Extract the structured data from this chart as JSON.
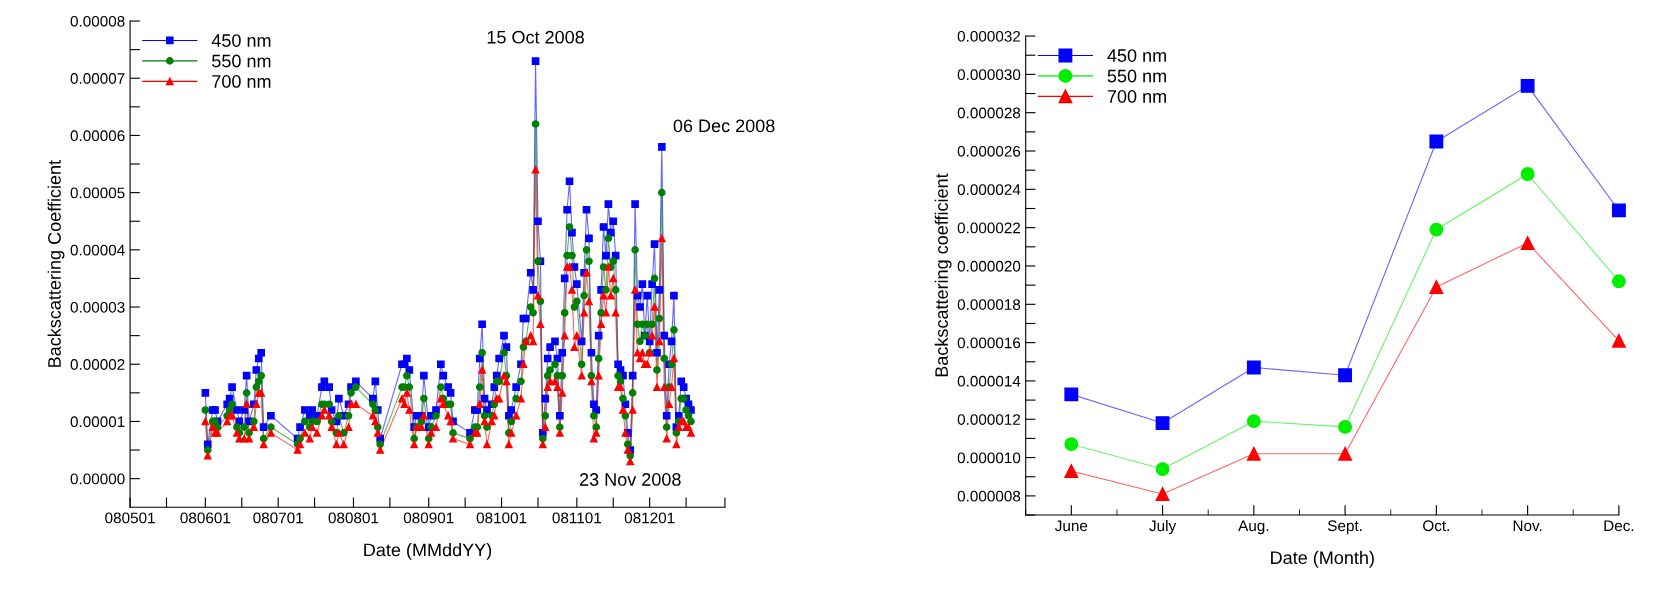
{
  "chart_data": [
    {
      "type": "line",
      "xlabel": "Date (MMddYY)",
      "ylabel": "Backscattering Coefficient",
      "legend": "top left",
      "xlim": [
        "2008-05-01",
        "2009-01-01"
      ],
      "xticks": [
        {
          "value": "2008-05-01",
          "label": "080501"
        },
        {
          "value": "2008-05-16",
          "label": null
        },
        {
          "value": "2008-06-01",
          "label": "080601"
        },
        {
          "value": "2008-06-16",
          "label": null
        },
        {
          "value": "2008-07-01",
          "label": "080701"
        },
        {
          "value": "2008-07-16",
          "label": null
        },
        {
          "value": "2008-08-01",
          "label": "080801"
        },
        {
          "value": "2008-08-16",
          "label": null
        },
        {
          "value": "2008-09-01",
          "label": "080901"
        },
        {
          "value": "2008-09-16",
          "label": null
        },
        {
          "value": "2008-10-01",
          "label": "081001"
        },
        {
          "value": "2008-10-16",
          "label": null
        },
        {
          "value": "2008-11-01",
          "label": "081101"
        },
        {
          "value": "2008-11-16",
          "label": null
        },
        {
          "value": "2008-12-01",
          "label": "081201"
        },
        {
          "value": "2008-12-16",
          "label": null
        },
        {
          "value": "2009-01-01",
          "label": null
        }
      ],
      "ylim": [
        -5e-06,
        8e-05
      ],
      "yticks": [
        {
          "value": 0,
          "label": "0.00000"
        },
        {
          "value": 5e-06,
          "label": null
        },
        {
          "value": 1e-05,
          "label": "0.00001"
        },
        {
          "value": 1.5e-05,
          "label": null
        },
        {
          "value": 2e-05,
          "label": "0.00002"
        },
        {
          "value": 2.5e-05,
          "label": null
        },
        {
          "value": 3e-05,
          "label": "0.00003"
        },
        {
          "value": 3.5e-05,
          "label": null
        },
        {
          "value": 4e-05,
          "label": "0.00004"
        },
        {
          "value": 4.5e-05,
          "label": null
        },
        {
          "value": 5e-05,
          "label": "0.00005"
        },
        {
          "value": 5.5e-05,
          "label": null
        },
        {
          "value": 6e-05,
          "label": "0.00006"
        },
        {
          "value": 6.5e-05,
          "label": null
        },
        {
          "value": 7e-05,
          "label": "0.00007"
        },
        {
          "value": 7.5e-05,
          "label": null
        },
        {
          "value": 8e-05,
          "label": "0.00008"
        }
      ],
      "grid": false,
      "line_style": "solid",
      "annotations": [
        {
          "text": "15 Oct 2008",
          "x": "2008-10-15",
          "y": 7.3e-05
        },
        {
          "text": "06 Dec 2008",
          "x": "2008-12-06",
          "y": 5.8e-05
        },
        {
          "text": "23 Nov 2008",
          "x": "2008-11-23",
          "y": 3e-06
        }
      ],
      "x": [
        "2008-06-01",
        "2008-06-02",
        "2008-06-04",
        "2008-06-05",
        "2008-06-06",
        "2008-06-10",
        "2008-06-11",
        "2008-06-12",
        "2008-06-14",
        "2008-06-15",
        "2008-06-17",
        "2008-06-18",
        "2008-06-19",
        "2008-06-21",
        "2008-06-22",
        "2008-06-23",
        "2008-06-24",
        "2008-06-25",
        "2008-06-28",
        "2008-07-09",
        "2008-07-10",
        "2008-07-12",
        "2008-07-14",
        "2008-07-15",
        "2008-07-17",
        "2008-07-19",
        "2008-07-20",
        "2008-07-22",
        "2008-07-23",
        "2008-07-25",
        "2008-07-26",
        "2008-07-28",
        "2008-07-30",
        "2008-07-31",
        "2008-08-02",
        "2008-08-09",
        "2008-08-10",
        "2008-08-11",
        "2008-08-12",
        "2008-08-21",
        "2008-08-22",
        "2008-08-23",
        "2008-08-24",
        "2008-08-26",
        "2008-08-27",
        "2008-08-29",
        "2008-08-30",
        "2008-09-01",
        "2008-09-02",
        "2008-09-04",
        "2008-09-06",
        "2008-09-07",
        "2008-09-09",
        "2008-09-10",
        "2008-09-11",
        "2008-09-18",
        "2008-09-20",
        "2008-09-21",
        "2008-09-22",
        "2008-09-23",
        "2008-09-24",
        "2008-09-25",
        "2008-09-27",
        "2008-09-28",
        "2008-09-29",
        "2008-09-30",
        "2008-10-02",
        "2008-10-03",
        "2008-10-04",
        "2008-10-05",
        "2008-10-07",
        "2008-10-09",
        "2008-10-10",
        "2008-10-11",
        "2008-10-13",
        "2008-10-14",
        "2008-10-15",
        "2008-10-16",
        "2008-10-17",
        "2008-10-18",
        "2008-10-19",
        "2008-10-20",
        "2008-10-21",
        "2008-10-23",
        "2008-10-24",
        "2008-10-25",
        "2008-10-26",
        "2008-10-27",
        "2008-10-28",
        "2008-10-29",
        "2008-10-30",
        "2008-10-31",
        "2008-11-01",
        "2008-11-03",
        "2008-11-04",
        "2008-11-05",
        "2008-11-06",
        "2008-11-07",
        "2008-11-08",
        "2008-11-09",
        "2008-11-10",
        "2008-11-11",
        "2008-11-12",
        "2008-11-13",
        "2008-11-14",
        "2008-11-15",
        "2008-11-16",
        "2008-11-17",
        "2008-11-18",
        "2008-11-19",
        "2008-11-20",
        "2008-11-21",
        "2008-11-22",
        "2008-11-23",
        "2008-11-24",
        "2008-11-25",
        "2008-11-26",
        "2008-11-27",
        "2008-11-28",
        "2008-11-29",
        "2008-11-30",
        "2008-12-01",
        "2008-12-02",
        "2008-12-03",
        "2008-12-04",
        "2008-12-05",
        "2008-12-06",
        "2008-12-07",
        "2008-12-08",
        "2008-12-09",
        "2008-12-10",
        "2008-12-11",
        "2008-12-12",
        "2008-12-13",
        "2008-12-14",
        "2008-12-15",
        "2008-12-16",
        "2008-12-17",
        "2008-12-18"
      ],
      "series": [
        {
          "name": "450 nm",
          "color": "#0000ff",
          "marker": "square",
          "values": [
            1.5e-05,
            6e-06,
            1.2e-05,
            1.2e-05,
            1e-05,
            1.3e-05,
            1.4e-05,
            1.6e-05,
            1.2e-05,
            1e-05,
            1.2e-05,
            1.8e-05,
            1e-05,
            1.3e-05,
            1.9e-05,
            2.1e-05,
            2.2e-05,
            9e-06,
            1.1e-05,
            7e-06,
            9e-06,
            1.2e-05,
            1.1e-05,
            1.2e-05,
            1.1e-05,
            1.6e-05,
            1.7e-05,
            1.6e-05,
            1.2e-05,
            1e-05,
            1.4e-05,
            1.1e-05,
            1.3e-05,
            1.6e-05,
            1.7e-05,
            1.4e-05,
            1.7e-05,
            1.2e-05,
            7e-06,
            2e-05,
            2e-05,
            2.1e-05,
            1.9e-05,
            9e-06,
            1.1e-05,
            1.1e-05,
            1.8e-05,
            9e-06,
            1.1e-05,
            1.2e-05,
            2e-05,
            1.8e-05,
            1.6e-05,
            1.5e-05,
            1e-05,
            8e-06,
            1.2e-05,
            1.2e-05,
            2.1e-05,
            2.7e-05,
            1.4e-05,
            1.2e-05,
            1.3e-05,
            1.6e-05,
            1.8e-05,
            2.1e-05,
            2.5e-05,
            2.3e-05,
            1.1e-05,
            1.2e-05,
            1.6e-05,
            2e-05,
            2.8e-05,
            2.8e-05,
            3.6e-05,
            3.3e-05,
            7.3e-05,
            4.5e-05,
            3.8e-05,
            8e-06,
            1.4e-05,
            2.1e-05,
            2.3e-05,
            2.4e-05,
            2.1e-05,
            1.1e-05,
            2.2e-05,
            3.5e-05,
            4.7e-05,
            5.2e-05,
            4.3e-05,
            3.7e-05,
            3.4e-05,
            2.4e-05,
            3.6e-05,
            4.7e-05,
            4.2e-05,
            2.2e-05,
            1.3e-05,
            1.2e-05,
            2.5e-05,
            3.3e-05,
            4.4e-05,
            3.9e-05,
            4.8e-05,
            4.3e-05,
            4.5e-05,
            3.9e-05,
            2e-05,
            1.9e-05,
            1.8e-05,
            1.3e-05,
            8e-06,
            5e-06,
            1.8e-05,
            4.8e-05,
            3.2e-05,
            3e-05,
            3.4e-05,
            2.5e-05,
            3.2e-05,
            2.4e-05,
            3.4e-05,
            4.1e-05,
            2.2e-05,
            3.3e-05,
            5.8e-05,
            2.5e-05,
            1.1e-05,
            2e-05,
            2.4e-05,
            3.2e-05,
            9e-06,
            1.1e-05,
            1.7e-05,
            1.6e-05,
            1.4e-05,
            1.3e-05,
            1.2e-05
          ]
        },
        {
          "name": "550 nm",
          "color": "#008000",
          "marker": "circle",
          "values": [
            1.2e-05,
            5e-06,
            1e-05,
            1e-05,
            9e-06,
            1.1e-05,
            1.2e-05,
            1.3e-05,
            9e-06,
            8e-06,
            9e-06,
            1.5e-05,
            8e-06,
            1e-05,
            1.6e-05,
            1.7e-05,
            1.8e-05,
            7e-06,
            9e-06,
            6e-06,
            7e-06,
            1e-05,
            9e-06,
            1e-05,
            1e-05,
            1.3e-05,
            1.3e-05,
            1.3e-05,
            1e-05,
            8e-06,
            1.1e-05,
            8e-06,
            1.1e-05,
            1.5e-05,
            1.6e-05,
            1.3e-05,
            1.2e-05,
            9e-06,
            6e-06,
            1.6e-05,
            1.6e-05,
            1.8e-05,
            1.6e-05,
            7e-06,
            9e-06,
            1e-05,
            1.4e-05,
            7e-06,
            9e-06,
            1.1e-05,
            1.6e-05,
            1.4e-05,
            1.3e-05,
            1.3e-05,
            8e-06,
            7e-06,
            9e-06,
            9e-06,
            1.6e-05,
            2.2e-05,
            1.1e-05,
            9e-06,
            1.1e-05,
            1.3e-05,
            1.7e-05,
            1.7e-05,
            2.2e-05,
            1.8e-05,
            8e-06,
            1e-05,
            1.4e-05,
            1.7e-05,
            2.3e-05,
            2.4e-05,
            3e-05,
            2.9e-05,
            6.2e-05,
            3.8e-05,
            3.1e-05,
            7e-06,
            1.1e-05,
            1.8e-05,
            1.9e-05,
            2e-05,
            1.8e-05,
            9e-06,
            1.8e-05,
            2.9e-05,
            3.9e-05,
            4.4e-05,
            3.9e-05,
            3e-05,
            3.1e-05,
            2e-05,
            3.2e-05,
            4e-05,
            3.8e-05,
            1.8e-05,
            1.1e-05,
            9e-06,
            2.1e-05,
            2.9e-05,
            3.7e-05,
            3.3e-05,
            4.2e-05,
            3.7e-05,
            3.8e-05,
            3.3e-05,
            1.8e-05,
            1.7e-05,
            1.4e-05,
            1.1e-05,
            6e-06,
            4e-06,
            1.5e-05,
            4e-05,
            2.7e-05,
            2.4e-05,
            2.7e-05,
            2.5e-05,
            2.7e-05,
            2.2e-05,
            2.7e-05,
            3.5e-05,
            1.9e-05,
            2.8e-05,
            5e-05,
            2.1e-05,
            9e-06,
            1.6e-05,
            2e-05,
            2.6e-05,
            8e-06,
            1e-05,
            1.4e-05,
            1.4e-05,
            1.2e-05,
            1.1e-05,
            1e-05
          ]
        },
        {
          "name": "700 nm",
          "color": "#ff0000",
          "marker": "triangle",
          "values": [
            1e-05,
            4e-06,
            9e-06,
            8e-06,
            8e-06,
            1e-05,
            1.1e-05,
            1.1e-05,
            8e-06,
            7e-06,
            7e-06,
            1.3e-05,
            7e-06,
            9e-06,
            1.3e-05,
            1.5e-05,
            1.5e-05,
            6e-06,
            8e-06,
            5e-06,
            6e-06,
            8e-06,
            7e-06,
            9e-06,
            8e-06,
            1.1e-05,
            1.2e-05,
            1.1e-05,
            9e-06,
            6e-06,
            8e-06,
            6e-06,
            9e-06,
            1.3e-05,
            1.3e-05,
            1.1e-05,
            1e-05,
            8e-06,
            5e-06,
            1.4e-05,
            1.3e-05,
            1.5e-05,
            1.2e-05,
            6e-06,
            9e-06,
            9e-06,
            1.1e-05,
            6e-06,
            8e-06,
            9e-06,
            1.4e-05,
            1.3e-05,
            1.1e-05,
            1e-05,
            7e-06,
            6e-06,
            8e-06,
            8e-06,
            1.3e-05,
            1.9e-05,
            1e-05,
            6e-06,
            1e-05,
            1.1e-05,
            1.4e-05,
            1.4e-05,
            1.8e-05,
            1.7e-05,
            6e-06,
            8e-06,
            1.1e-05,
            1.4e-05,
            2e-05,
            2.4e-05,
            2.5e-05,
            2.4e-05,
            5.4e-05,
            3.2e-05,
            2.7e-05,
            6e-06,
            9e-06,
            1.6e-05,
            1.7e-05,
            1.7e-05,
            1.6e-05,
            8e-06,
            1.5e-05,
            2.5e-05,
            3.7e-05,
            3.7e-05,
            3.3e-05,
            2.3e-05,
            2.5e-05,
            1.8e-05,
            2.9e-05,
            3.6e-05,
            3.1e-05,
            1.7e-05,
            7e-06,
            8e-06,
            1.8e-05,
            2.7e-05,
            3.2e-05,
            2.9e-05,
            3.7e-05,
            3.2e-05,
            3.5e-05,
            2.9e-05,
            1.6e-05,
            1.6e-05,
            1.2e-05,
            8e-06,
            5e-06,
            3e-06,
            1.2e-05,
            3.3e-05,
            2.2e-05,
            2.1e-05,
            2.2e-05,
            2e-05,
            2e-05,
            2.2e-05,
            2.5e-05,
            3e-05,
            1.6e-05,
            2.4e-05,
            4.2e-05,
            1.6e-05,
            7e-06,
            1.3e-05,
            1.6e-05,
            2.1e-05,
            6e-06,
            9e-06,
            1e-05,
            1e-05,
            9e-06,
            9e-06,
            8e-06
          ]
        }
      ]
    },
    {
      "type": "line",
      "xlabel": "Date (Month)",
      "ylabel": "Backscattering coefficient",
      "legend": "top left",
      "grid": false,
      "line_style": "solid",
      "categories": [
        "June",
        "July",
        "Aug.",
        "Sept.",
        "Oct.",
        "Nov.",
        "Dec."
      ],
      "ylim": [
        7e-06,
        3.2e-05
      ],
      "yticks": [
        {
          "value": 7e-06,
          "label": null
        },
        {
          "value": 8e-06,
          "label": "0.000008"
        },
        {
          "value": 9e-06,
          "label": null
        },
        {
          "value": 1e-05,
          "label": "0.000010"
        },
        {
          "value": 1.1e-05,
          "label": null
        },
        {
          "value": 1.2e-05,
          "label": "0.000012"
        },
        {
          "value": 1.3e-05,
          "label": null
        },
        {
          "value": 1.4e-05,
          "label": "0.000014"
        },
        {
          "value": 1.5e-05,
          "label": null
        },
        {
          "value": 1.6e-05,
          "label": "0.000016"
        },
        {
          "value": 1.7e-05,
          "label": null
        },
        {
          "value": 1.8e-05,
          "label": "0.000018"
        },
        {
          "value": 1.9e-05,
          "label": null
        },
        {
          "value": 2e-05,
          "label": "0.000020"
        },
        {
          "value": 2.1e-05,
          "label": null
        },
        {
          "value": 2.2e-05,
          "label": "0.000022"
        },
        {
          "value": 2.3e-05,
          "label": null
        },
        {
          "value": 2.4e-05,
          "label": "0.000024"
        },
        {
          "value": 2.5e-05,
          "label": null
        },
        {
          "value": 2.6e-05,
          "label": "0.000026"
        },
        {
          "value": 2.7e-05,
          "label": null
        },
        {
          "value": 2.8e-05,
          "label": "0.000028"
        },
        {
          "value": 2.9e-05,
          "label": null
        },
        {
          "value": 3e-05,
          "label": "0.000030"
        },
        {
          "value": 3.1e-05,
          "label": null
        },
        {
          "value": 3.2e-05,
          "label": "0.000032"
        }
      ],
      "series": [
        {
          "name": "450 nm",
          "color": "#0000ff",
          "marker": "square",
          "values": [
            1.33e-05,
            1.18e-05,
            1.47e-05,
            1.43e-05,
            2.65e-05,
            2.94e-05,
            2.29e-05
          ]
        },
        {
          "name": "550 nm",
          "color": "#00ee00",
          "marker": "circle",
          "values": [
            1.07e-05,
            9.4e-06,
            1.19e-05,
            1.16e-05,
            2.19e-05,
            2.48e-05,
            1.92e-05
          ]
        },
        {
          "name": "700 nm",
          "color": "#ff0000",
          "marker": "triangle",
          "values": [
            9.3e-06,
            8.1e-06,
            1.02e-05,
            1.02e-05,
            1.89e-05,
            2.12e-05,
            1.61e-05
          ]
        }
      ]
    }
  ]
}
